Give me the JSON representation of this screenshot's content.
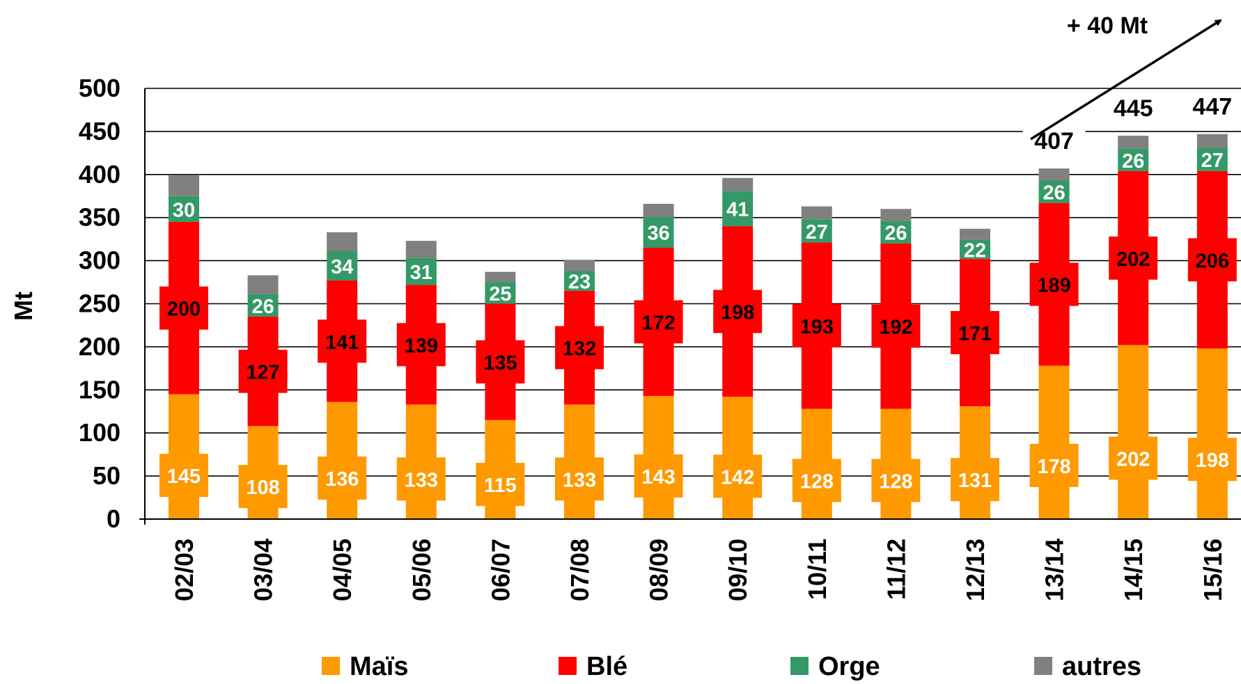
{
  "chart_data": {
    "type": "bar",
    "stacked": true,
    "ylabel": "Mt",
    "ylim": [
      0,
      500
    ],
    "yticks": [
      0,
      50,
      100,
      150,
      200,
      250,
      300,
      350,
      400,
      450,
      500
    ],
    "grid": true,
    "legend_position": "bottom",
    "categories": [
      "02/03",
      "03/04",
      "04/05",
      "05/06",
      "06/07",
      "07/08",
      "08/09",
      "09/10",
      "10/11",
      "11/12",
      "12/13",
      "13/14",
      "14/15",
      "15/16"
    ],
    "series": [
      {
        "name": "Maïs",
        "color": "#FF9900",
        "label_color": "#FFFFFF",
        "values": [
          145,
          108,
          136,
          133,
          115,
          133,
          143,
          142,
          128,
          128,
          131,
          178,
          202,
          198
        ]
      },
      {
        "name": "Blé",
        "color": "#FF0000",
        "label_color": "#000000",
        "values": [
          200,
          127,
          141,
          139,
          135,
          132,
          172,
          198,
          193,
          192,
          171,
          189,
          202,
          206
        ]
      },
      {
        "name": "Orge",
        "color": "#339966",
        "label_color": "#FFFFFF",
        "values": [
          30,
          26,
          34,
          31,
          25,
          23,
          36,
          41,
          27,
          26,
          22,
          26,
          26,
          27
        ]
      },
      {
        "name": "autres",
        "color": "#808080",
        "label_color": "",
        "values": [
          24,
          22,
          22,
          20,
          12,
          13,
          15,
          15,
          15,
          14,
          13,
          14,
          15,
          16
        ]
      }
    ],
    "totals": {
      "13/14": "407",
      "14/15": "445",
      "15/16": "447"
    },
    "annotation": "+ 40 Mt"
  }
}
